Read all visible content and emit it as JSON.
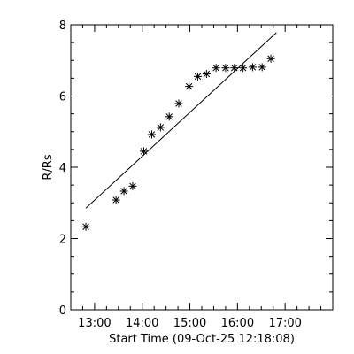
{
  "chart_data": {
    "type": "scatter",
    "xlabel": "Start Time (09-Oct-25 12:18:08)",
    "ylabel": "R/Rs",
    "xlim": [
      "12:30",
      "18:00"
    ],
    "ylim": [
      0,
      8
    ],
    "x_ticks": [
      "13:00",
      "14:00",
      "15:00",
      "16:00",
      "17:00"
    ],
    "y_ticks": [
      "0",
      "2",
      "4",
      "6",
      "8"
    ],
    "grid": false,
    "legend": "none",
    "marker": "asterisk",
    "colors": {
      "foreground": "#000000",
      "background": "#ffffff"
    },
    "series": [
      {
        "x": [
          "12:49",
          "13:27",
          "13:37",
          "13:48",
          "14:02",
          "14:12",
          "14:23",
          "14:34",
          "14:46",
          "14:59",
          "15:10",
          "15:21",
          "15:33",
          "15:45",
          "15:56",
          "16:07",
          "16:19",
          "16:31",
          "16:42"
        ],
        "y": [
          2.33,
          3.08,
          3.33,
          3.47,
          4.45,
          4.92,
          5.12,
          5.42,
          5.79,
          6.27,
          6.55,
          6.62,
          6.79,
          6.79,
          6.79,
          6.79,
          6.81,
          6.81,
          7.05
        ]
      }
    ],
    "fit_line": {
      "x": [
        "12:49",
        "16:49"
      ],
      "y": [
        2.85,
        7.78
      ]
    }
  }
}
